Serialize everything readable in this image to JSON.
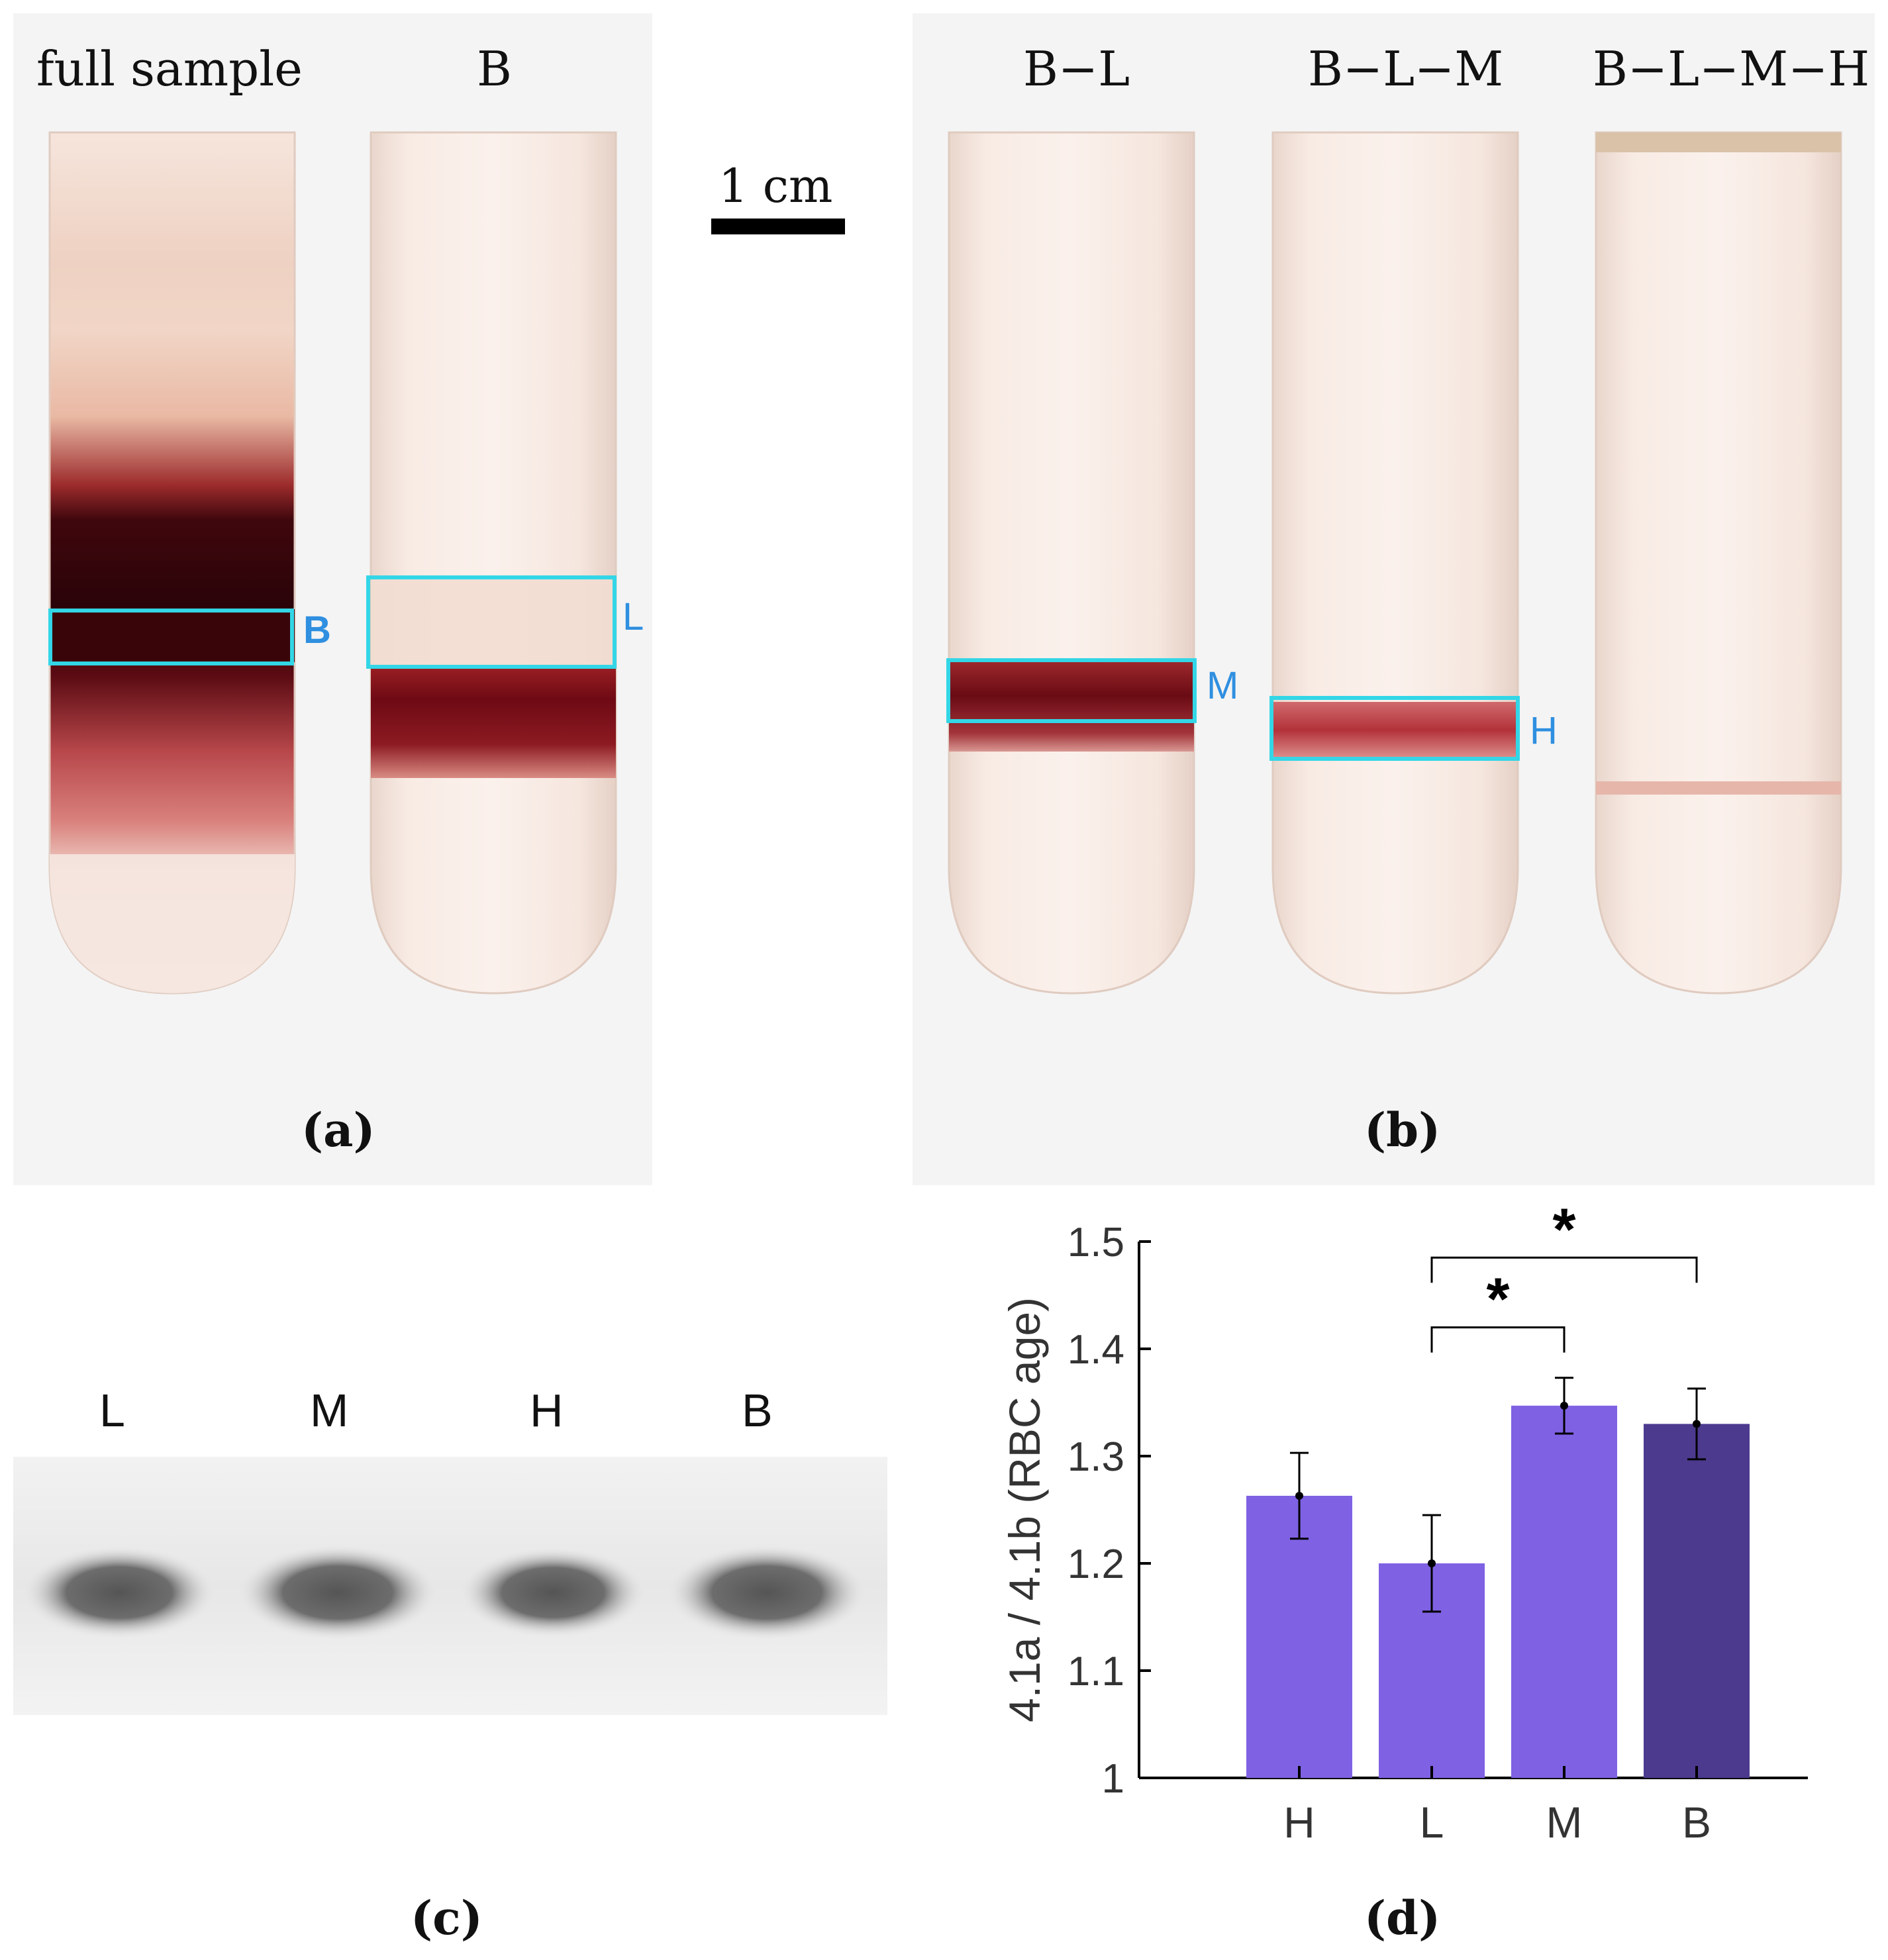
{
  "panel_a": {
    "label": "(a)",
    "tube_labels": [
      "full sample",
      "B"
    ],
    "box_labels": [
      "B",
      "L"
    ]
  },
  "scale_bar": {
    "label": "1 cm"
  },
  "panel_b": {
    "label": "(b)",
    "tube_labels": [
      "B−L",
      "B−L−M",
      "B−L−M−H"
    ],
    "box_labels": [
      "M",
      "H"
    ]
  },
  "panel_c": {
    "label": "(c)",
    "lane_labels": [
      "L",
      "M",
      "H",
      "B"
    ]
  },
  "panel_d": {
    "label": "(d)",
    "chart_data": {
      "type": "bar",
      "categories": [
        "H",
        "L",
        "M",
        "B"
      ],
      "values": [
        1.263,
        1.2,
        1.347,
        1.33
      ],
      "error": [
        0.04,
        0.045,
        0.026,
        0.033
      ],
      "ylabel": "4.1a / 4.1b (RBC age)",
      "ylim": [
        1,
        1.5
      ],
      "yticks": [
        "1",
        "1.1",
        "1.2",
        "1.3",
        "1.4",
        "1.5"
      ],
      "bar_colors": [
        "#7f61e3",
        "#7f61e3",
        "#7f61e3",
        "#4c3a8e"
      ],
      "significance": [
        {
          "from": "L",
          "to": "M",
          "symbol": "*"
        },
        {
          "from": "L",
          "to": "B",
          "symbol": "*"
        }
      ],
      "grid": false
    }
  },
  "colors": {
    "highlight_box": "#33d6e6",
    "box_label": "#2f8fe0",
    "panel_bg": "#f4f4f4",
    "blood": "#7a0d18"
  }
}
